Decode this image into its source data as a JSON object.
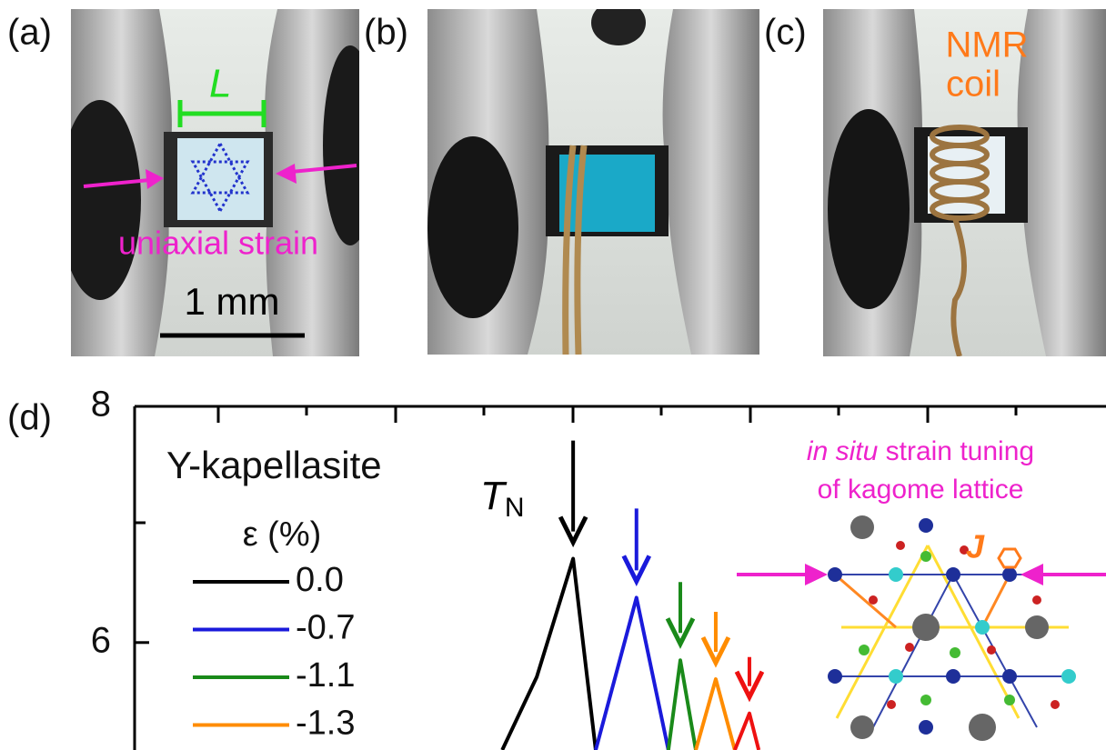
{
  "panels": {
    "a": {
      "label": "(a)",
      "length": "L",
      "strain": "uniaxial strain",
      "scale": "1 mm"
    },
    "b": {
      "label": "(b)"
    },
    "c": {
      "label": "(c)",
      "coil": [
        "NMR",
        "coil"
      ]
    },
    "d": {
      "label": "(d)"
    }
  },
  "chart_data": {
    "type": "line",
    "legend_title": "Y-kapellasite",
    "legend_subtitle": "ε (%)",
    "tn_label": [
      "T",
      "N"
    ],
    "inset_title": [
      "in situ",
      " strain tuning",
      "of kagome lattice"
    ],
    "inset_coupling": "J",
    "ylim": [
      5.09,
      8
    ],
    "yticks": [
      6,
      8
    ],
    "xlim": [
      0,
      21.93
    ],
    "series": [
      {
        "name": "0.0",
        "color": "#000000",
        "x": [
          8.3,
          9.08,
          9.9,
          10.41
        ],
        "values": [
          5.09,
          5.71,
          6.71,
          5.09
        ]
      },
      {
        "name": "-0.7",
        "color": "#1a1adb",
        "x": [
          10.41,
          11.33,
          12.05
        ],
        "values": [
          5.09,
          6.38,
          5.09
        ]
      },
      {
        "name": "-1.1",
        "color": "#1a8a1a",
        "x": [
          12.05,
          12.32,
          12.67
        ],
        "values": [
          5.09,
          5.85,
          5.09
        ]
      },
      {
        "name": "-1.3",
        "color": "#ff8c00",
        "x": [
          12.67,
          13.12,
          13.55
        ],
        "values": [
          5.09,
          5.69,
          5.09
        ]
      },
      {
        "color": "#ee1111",
        "x": [
          13.55,
          13.88,
          14.09
        ],
        "values": [
          5.09,
          5.4,
          5.09
        ]
      }
    ]
  }
}
